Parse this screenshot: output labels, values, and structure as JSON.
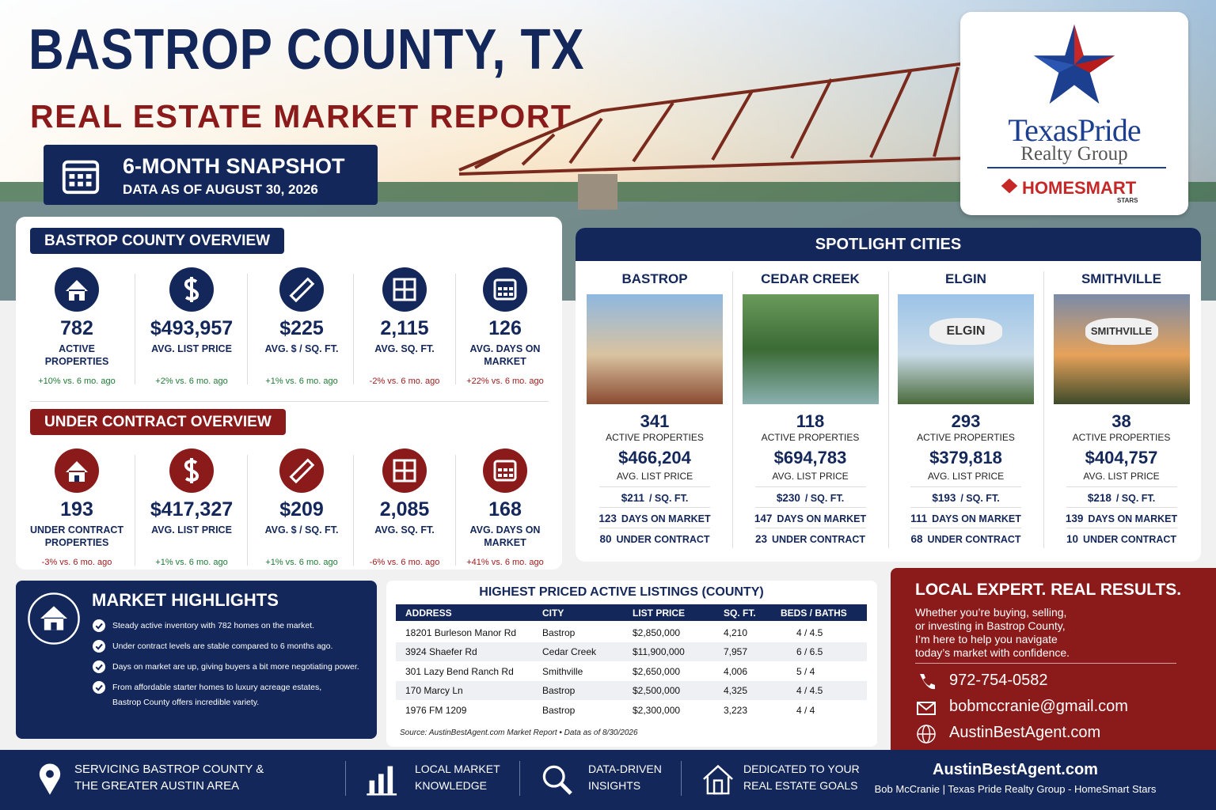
{
  "header": {
    "title": "BASTROP COUNTY, TX",
    "subtitle": "REAL ESTATE MARKET REPORT",
    "snapshot_title": "6-MONTH SNAPSHOT",
    "snapshot_date": "DATA AS OF AUGUST 30, 2026"
  },
  "logo": {
    "brand": "TexasPride",
    "sub": "Realty Group",
    "partner": "HOMESMART",
    "partner_sub": "STARS"
  },
  "overview": {
    "title": "BASTROP COUNTY OVERVIEW",
    "stats": [
      {
        "value": "782",
        "label": "ACTIVE PROPERTIES",
        "change": "+10% vs. 6 mo. ago",
        "change_color": "#1e7b34"
      },
      {
        "value": "$493,957",
        "label": "AVG. LIST PRICE",
        "change": "+2% vs. 6 mo. ago",
        "change_color": "#1e7b34"
      },
      {
        "value": "$225",
        "label": "AVG. $ / SQ. FT.",
        "change": "+1% vs. 6 mo. ago",
        "change_color": "#1e7b34"
      },
      {
        "value": "2,115",
        "label": "AVG. SQ. FT.",
        "change": "-2% vs. 6 mo. ago",
        "change_color": "#a01c1c"
      },
      {
        "value": "126",
        "label": "AVG. DAYS ON MARKET",
        "change": "+22% vs. 6 mo. ago",
        "change_color": "#a01c1c"
      }
    ]
  },
  "under_contract": {
    "title": "UNDER CONTRACT OVERVIEW",
    "stats": [
      {
        "value": "193",
        "label": "UNDER CONTRACT PROPERTIES",
        "change": "-3% vs. 6 mo. ago",
        "change_color": "#a01c1c"
      },
      {
        "value": "$417,327",
        "label": "AVG. LIST PRICE",
        "change": "+1% vs. 6 mo. ago",
        "change_color": "#1e7b34"
      },
      {
        "value": "$209",
        "label": "AVG. $ / SQ. FT.",
        "change": "+1% vs. 6 mo. ago",
        "change_color": "#1e7b34"
      },
      {
        "value": "2,085",
        "label": "AVG. SQ. FT.",
        "change": "-6% vs. 6 mo. ago",
        "change_color": "#a01c1c"
      },
      {
        "value": "168",
        "label": "AVG. DAYS ON MARKET",
        "change": "+41% vs. 6 mo. ago",
        "change_color": "#a01c1c"
      }
    ]
  },
  "spotlight": {
    "title": "SPOTLIGHT CITIES",
    "cities": [
      {
        "name": "BASTROP",
        "active": "341",
        "active_label": "ACTIVE PROPERTIES",
        "price": "$466,204",
        "price_label": "AVG. LIST PRICE",
        "ppsf": "$211",
        "ppsf_label": "/ SQ. FT.",
        "dom": "123",
        "dom_label": "DAYS ON MARKET",
        "uc": "80",
        "uc_label": "UNDER CONTRACT"
      },
      {
        "name": "CEDAR CREEK",
        "active": "118",
        "active_label": "ACTIVE PROPERTIES",
        "price": "$694,783",
        "price_label": "AVG. LIST PRICE",
        "ppsf": "$230",
        "ppsf_label": "/ SQ. FT.",
        "dom": "147",
        "dom_label": "DAYS ON MARKET",
        "uc": "23",
        "uc_label": "UNDER CONTRACT"
      },
      {
        "name": "ELGIN",
        "photo_text": "ELGIN",
        "active": "293",
        "active_label": "ACTIVE PROPERTIES",
        "price": "$379,818",
        "price_label": "AVG. LIST PRICE",
        "ppsf": "$193",
        "ppsf_label": "/ SQ. FT.",
        "dom": "111",
        "dom_label": "DAYS ON MARKET",
        "uc": "68",
        "uc_label": "UNDER CONTRACT"
      },
      {
        "name": "SMITHVILLE",
        "photo_text": "SMITHVILLE",
        "active": "38",
        "active_label": "ACTIVE PROPERTIES",
        "price": "$404,757",
        "price_label": "AVG. LIST PRICE",
        "ppsf": "$218",
        "ppsf_label": "/ SQ. FT.",
        "dom": "139",
        "dom_label": "DAYS ON MARKET",
        "uc": "10",
        "uc_label": "UNDER CONTRACT"
      }
    ]
  },
  "highlights": {
    "title": "MARKET HIGHLIGHTS",
    "items": [
      [
        "Steady active inventory with 782 homes on the market."
      ],
      [
        "Under contract levels are stable compared to 6 months ago."
      ],
      [
        "Days on market are up, giving buyers a bit more negotiating power."
      ],
      [
        "From affordable starter homes to luxury acreage estates,",
        "Bastrop County offers incredible variety."
      ]
    ]
  },
  "listings": {
    "title": "HIGHEST PRICED ACTIVE LISTINGS (COUNTY)",
    "columns": [
      "ADDRESS",
      "CITY",
      "LIST PRICE",
      "SQ. FT.",
      "BEDS / BATHS"
    ],
    "rows": [
      [
        "18201 Burleson Manor Rd",
        "Bastrop",
        "$2,850,000",
        "4,210",
        "4 / 4.5"
      ],
      [
        "3924 Shaefer Rd",
        "Cedar Creek",
        "$11,900,000",
        "7,957",
        "6 / 6.5"
      ],
      [
        "301 Lazy Bend Ranch Rd",
        "Smithville",
        "$2,650,000",
        "4,006",
        "5 / 4"
      ],
      [
        "170 Marcy Ln",
        "Bastrop",
        "$2,500,000",
        "4,325",
        "4 / 4.5"
      ],
      [
        "1976 FM 1209",
        "Bastrop",
        "$2,300,000",
        "3,223",
        "4 / 4"
      ]
    ],
    "source": "Source: AustinBestAgent.com Market Report • Data as of 8/30/2026"
  },
  "contact": {
    "title": "LOCAL EXPERT. REAL RESULTS.",
    "text": [
      "Whether you’re buying, selling,",
      "or investing in Bastrop County,",
      "I’m here to help you navigate",
      "today’s market with confidence."
    ],
    "phone": "972-754-0582",
    "email": "bobmccranie@gmail.com",
    "website": "AustinBestAgent.com"
  },
  "footer": {
    "items": [
      [
        "SERVICING BASTROP COUNTY &",
        "THE GREATER AUSTIN AREA"
      ],
      [
        "LOCAL MARKET",
        "KNOWLEDGE"
      ],
      [
        "DATA-DRIVEN",
        "INSIGHTS"
      ],
      [
        "DEDICATED TO YOUR",
        "REAL ESTATE GOALS"
      ]
    ],
    "site": "AustinBestAgent.com",
    "credit": "Bob McCranie | Texas Pride Realty Group - HomeSmart Stars"
  }
}
